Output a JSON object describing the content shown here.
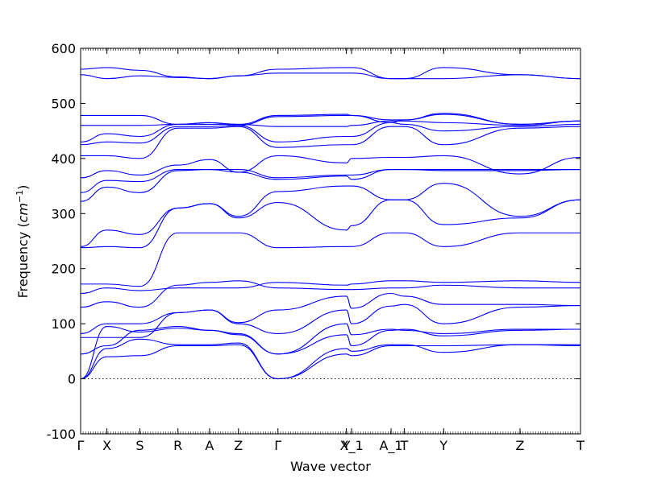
{
  "chart_data": {
    "type": "line",
    "xlabel": "Wave vector",
    "ylabel_main": "Frequency (",
    "ylabel_unit": "cm",
    "ylabel_sup": "−1",
    "ylabel_close": ")",
    "ylim": [
      -100,
      600
    ],
    "yticks": [
      -100,
      0,
      100,
      200,
      300,
      400,
      500,
      600
    ],
    "xlim": [
      0,
      19
    ],
    "high_symmetry_points": [
      {
        "label": "Γ",
        "x": 0
      },
      {
        "label": "X",
        "x": 1
      },
      {
        "label": "S",
        "x": 2.25
      },
      {
        "label": "R",
        "x": 3.7
      },
      {
        "label": "A",
        "x": 4.9
      },
      {
        "label": "Z",
        "x": 6
      },
      {
        "label": "Γ",
        "x": 7.5
      },
      {
        "label": "Y",
        "x": 10.1
      },
      {
        "label": "X_1",
        "x": 10.3
      },
      {
        "label": "A_1",
        "x": 11.8
      },
      {
        "label": "T",
        "x": 12.3
      },
      {
        "label": "Y",
        "x": 13.8
      },
      {
        "label": "Z",
        "x": 16.7
      },
      {
        "label": "T",
        "x": 19
      }
    ],
    "zero_line": true,
    "grid": false,
    "line_color": "#0000ff",
    "series": [
      {
        "x": [
          0,
          1,
          2.25,
          3.7,
          4.9,
          6,
          7.5,
          10.1,
          10.3,
          11.8,
          12.3,
          13.8,
          16.7,
          19
        ],
        "values": [
          0,
          40,
          42,
          60,
          60,
          62,
          0,
          45,
          42,
          60,
          60,
          60,
          62,
          60
        ]
      },
      {
        "x": [
          0,
          1,
          2.25,
          3.7,
          4.9,
          6,
          7.5,
          10.1,
          10.3,
          11.8,
          12.3,
          13.8,
          16.7,
          19
        ],
        "values": [
          0,
          55,
          72,
          62,
          62,
          65,
          0,
          55,
          50,
          62,
          62,
          48,
          62,
          62
        ]
      },
      {
        "x": [
          0,
          1,
          2.25,
          3.7,
          4.9,
          6,
          7.5,
          10.1,
          10.3,
          11.8,
          12.3,
          13.8,
          16.7,
          19
        ],
        "values": [
          0,
          95,
          85,
          92,
          88,
          80,
          45,
          80,
          60,
          88,
          90,
          78,
          88,
          90
        ]
      },
      {
        "x": [
          0,
          1,
          2.25,
          3.7,
          4.9,
          6,
          7.5,
          10.1,
          10.3,
          11.8,
          12.3,
          13.8,
          16.7,
          19
        ],
        "values": [
          45,
          60,
          88,
          95,
          88,
          82,
          45,
          100,
          80,
          90,
          88,
          82,
          90,
          90
        ]
      },
      {
        "x": [
          0,
          1,
          2.25,
          3.7,
          4.9,
          6,
          7.5,
          10.1,
          10.3,
          11.8,
          12.3,
          13.8,
          16.7,
          19
        ],
        "values": [
          75,
          75,
          75,
          120,
          125,
          100,
          82,
          125,
          100,
          132,
          135,
          100,
          130,
          133
        ]
      },
      {
        "x": [
          0,
          1,
          2.25,
          3.7,
          4.9,
          6,
          7.5,
          10.1,
          10.3,
          11.8,
          12.3,
          13.8,
          16.7,
          19
        ],
        "values": [
          82,
          100,
          100,
          120,
          125,
          102,
          125,
          150,
          128,
          155,
          150,
          135,
          135,
          133
        ]
      },
      {
        "x": [
          0,
          1,
          2.25,
          3.7,
          4.9,
          6,
          7.5,
          10.1,
          10.3,
          11.8,
          12.3,
          13.8,
          16.7,
          19
        ],
        "values": [
          130,
          140,
          130,
          170,
          175,
          178,
          165,
          162,
          162,
          165,
          165,
          170,
          165,
          165
        ]
      },
      {
        "x": [
          0,
          1,
          2.25,
          3.7,
          4.9,
          6,
          7.5,
          10.1,
          10.3,
          11.8,
          12.3,
          13.8,
          16.7,
          19
        ],
        "values": [
          155,
          165,
          160,
          165,
          165,
          165,
          175,
          170,
          172,
          178,
          178,
          175,
          178,
          175
        ]
      },
      {
        "x": [
          0,
          1,
          2.25,
          3.7,
          4.9,
          6,
          7.5,
          10.1,
          10.3,
          11.8,
          12.3,
          13.8,
          16.7,
          19
        ],
        "values": [
          172,
          172,
          168,
          265,
          265,
          265,
          238,
          240,
          240,
          265,
          265,
          240,
          265,
          265
        ]
      },
      {
        "x": [
          0,
          1,
          2.25,
          3.7,
          4.9,
          6,
          7.5,
          10.1,
          10.3,
          11.8,
          12.3,
          13.8,
          16.7,
          19
        ],
        "values": [
          238,
          240,
          238,
          310,
          318,
          292,
          320,
          270,
          278,
          325,
          325,
          280,
          292,
          325
        ]
      },
      {
        "x": [
          0,
          1,
          2.25,
          3.7,
          4.9,
          6,
          7.5,
          10.1,
          10.3,
          11.8,
          12.3,
          13.8,
          16.7,
          19
        ],
        "values": [
          240,
          270,
          262,
          310,
          318,
          295,
          340,
          350,
          350,
          325,
          325,
          355,
          295,
          325
        ]
      },
      {
        "x": [
          0,
          1,
          2.25,
          3.7,
          4.9,
          6,
          7.5,
          10.1,
          10.3,
          11.8,
          12.3,
          13.8,
          16.7,
          19
        ],
        "values": [
          322,
          348,
          338,
          378,
          380,
          375,
          362,
          368,
          362,
          380,
          380,
          378,
          378,
          380
        ]
      },
      {
        "x": [
          0,
          1,
          2.25,
          3.7,
          4.9,
          6,
          7.5,
          10.1,
          10.3,
          11.8,
          12.3,
          13.8,
          16.7,
          19
        ],
        "values": [
          338,
          360,
          358,
          380,
          380,
          380,
          365,
          370,
          370,
          380,
          380,
          380,
          380,
          380
        ]
      },
      {
        "x": [
          0,
          1,
          2.25,
          3.7,
          4.9,
          6,
          7.5,
          10.1,
          10.3,
          11.8,
          12.3,
          13.8,
          16.7,
          19
        ],
        "values": [
          365,
          378,
          370,
          388,
          398,
          375,
          405,
          392,
          400,
          402,
          402,
          405,
          372,
          402
        ]
      },
      {
        "x": [
          0,
          1,
          2.25,
          3.7,
          4.9,
          6,
          7.5,
          10.1,
          10.3,
          11.8,
          12.3,
          13.8,
          16.7,
          19
        ],
        "values": [
          405,
          405,
          400,
          455,
          455,
          458,
          420,
          425,
          425,
          458,
          458,
          425,
          455,
          458
        ]
      },
      {
        "x": [
          0,
          1,
          2.25,
          3.7,
          4.9,
          6,
          7.5,
          10.1,
          10.3,
          11.8,
          12.3,
          13.8,
          16.7,
          19
        ],
        "values": [
          425,
          430,
          428,
          458,
          458,
          460,
          430,
          440,
          440,
          465,
          462,
          450,
          458,
          462
        ]
      },
      {
        "x": [
          0,
          1,
          2.25,
          3.7,
          4.9,
          6,
          7.5,
          10.1,
          10.3,
          11.8,
          12.3,
          13.8,
          16.7,
          19
        ],
        "values": [
          430,
          445,
          440,
          462,
          462,
          462,
          458,
          458,
          460,
          468,
          468,
          465,
          460,
          468
        ]
      },
      {
        "x": [
          0,
          1,
          2.25,
          3.7,
          4.9,
          6,
          7.5,
          10.1,
          10.3,
          11.8,
          12.3,
          13.8,
          16.7,
          19
        ],
        "values": [
          460,
          460,
          460,
          462,
          465,
          460,
          476,
          478,
          478,
          465,
          470,
          480,
          462,
          468
        ]
      },
      {
        "x": [
          0,
          1,
          2.25,
          3.7,
          4.9,
          6,
          7.5,
          10.1,
          10.3,
          11.8,
          12.3,
          13.8,
          16.7,
          19
        ],
        "values": [
          478,
          478,
          478,
          462,
          465,
          462,
          478,
          480,
          478,
          470,
          470,
          482,
          462,
          468
        ]
      },
      {
        "x": [
          0,
          1,
          2.25,
          3.7,
          4.9,
          6,
          7.5,
          10.1,
          10.3,
          11.8,
          12.3,
          13.8,
          16.7,
          19
        ],
        "values": [
          552,
          545,
          550,
          547,
          545,
          550,
          555,
          555,
          555,
          545,
          545,
          545,
          552,
          545
        ]
      },
      {
        "x": [
          0,
          1,
          2.25,
          3.7,
          4.9,
          6,
          7.5,
          10.1,
          10.3,
          11.8,
          12.3,
          13.8,
          16.7,
          19
        ],
        "values": [
          562,
          565,
          560,
          548,
          545,
          550,
          562,
          565,
          565,
          545,
          545,
          565,
          552,
          545
        ]
      }
    ]
  }
}
